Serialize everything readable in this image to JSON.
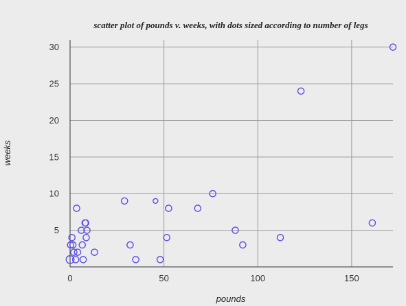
{
  "chart_data": {
    "type": "scatter",
    "title": "scatter plot of pounds v. weeks, with dots sized according to number of legs",
    "xlabel": "pounds",
    "ylabel": "weeks",
    "xlim": [
      0,
      172
    ],
    "ylim": [
      0,
      31
    ],
    "xticks": [
      0,
      50,
      100,
      150
    ],
    "yticks": [
      5,
      10,
      15,
      20,
      25,
      30
    ],
    "vertical_grid": [
      50,
      100,
      150
    ],
    "horizontal_grid": [
      5,
      10,
      15,
      20,
      25,
      30
    ],
    "colors": {
      "background": "#ececec",
      "dot_stroke": "#5a4fe6",
      "grid": "#9a9a9a",
      "axis": "#333333"
    },
    "points": [
      {
        "x": 0,
        "y": 1,
        "legs": 6
      },
      {
        "x": 0.3,
        "y": 3,
        "legs": 4
      },
      {
        "x": 1,
        "y": 4,
        "legs": 4
      },
      {
        "x": 1.5,
        "y": 3,
        "legs": 4
      },
      {
        "x": 2,
        "y": 2,
        "legs": 4
      },
      {
        "x": 3,
        "y": 1,
        "legs": 4
      },
      {
        "x": 3.5,
        "y": 8,
        "legs": 4
      },
      {
        "x": 4,
        "y": 2,
        "legs": 4
      },
      {
        "x": 6,
        "y": 5,
        "legs": 4
      },
      {
        "x": 6.5,
        "y": 3,
        "legs": 4
      },
      {
        "x": 7,
        "y": 1,
        "legs": 4
      },
      {
        "x": 8,
        "y": 6,
        "legs": 4
      },
      {
        "x": 8.3,
        "y": 6,
        "legs": 4
      },
      {
        "x": 8.6,
        "y": 4,
        "legs": 4
      },
      {
        "x": 9,
        "y": 5,
        "legs": 4
      },
      {
        "x": 13,
        "y": 2,
        "legs": 4
      },
      {
        "x": 29,
        "y": 9,
        "legs": 4
      },
      {
        "x": 32,
        "y": 3,
        "legs": 4
      },
      {
        "x": 35,
        "y": 1,
        "legs": 4
      },
      {
        "x": 45.5,
        "y": 9,
        "legs": 2
      },
      {
        "x": 48,
        "y": 1,
        "legs": 4
      },
      {
        "x": 51.5,
        "y": 4,
        "legs": 4
      },
      {
        "x": 52.5,
        "y": 8,
        "legs": 4
      },
      {
        "x": 68,
        "y": 8,
        "legs": 4
      },
      {
        "x": 76,
        "y": 10,
        "legs": 4
      },
      {
        "x": 88,
        "y": 5,
        "legs": 4
      },
      {
        "x": 92,
        "y": 3,
        "legs": 4
      },
      {
        "x": 112,
        "y": 4,
        "legs": 4
      },
      {
        "x": 123,
        "y": 24,
        "legs": 4
      },
      {
        "x": 161,
        "y": 6,
        "legs": 4
      },
      {
        "x": 172,
        "y": 30,
        "legs": 4
      }
    ]
  }
}
